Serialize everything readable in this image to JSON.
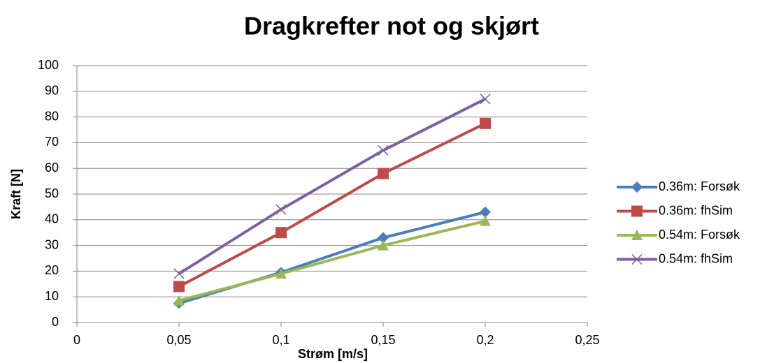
{
  "chart_data": {
    "type": "line",
    "title": "Dragkrefter not og skjørt",
    "xlabel": "Strøm [m/s]",
    "ylabel": "Kraft [N]",
    "x": [
      0.05,
      0.1,
      0.15,
      0.2
    ],
    "series": [
      {
        "name": "0.36m: Forsøk",
        "color": "#4a7ebb",
        "marker": "diamond",
        "values": [
          7.5,
          19.5,
          33,
          43
        ]
      },
      {
        "name": "0.36m: fhSim",
        "color": "#be4b48",
        "marker": "square",
        "values": [
          14,
          35,
          58,
          77.5
        ]
      },
      {
        "name": "0.54m: Forsøk",
        "color": "#98b954",
        "marker": "triangle",
        "values": [
          8.5,
          19,
          30,
          39.5
        ]
      },
      {
        "name": "0.54m: fhSim",
        "color": "#7d60a0",
        "marker": "x",
        "values": [
          19,
          44,
          67,
          87
        ]
      }
    ],
    "xlim": [
      0,
      0.25
    ],
    "xticks": [
      0,
      {
        "value": 0.05,
        "label": "0,05"
      },
      {
        "value": 0.1,
        "label": "0,1"
      },
      {
        "value": 0.15,
        "label": "0,15"
      },
      {
        "value": 0.2,
        "label": "0,2"
      },
      {
        "value": 0.25,
        "label": "0,25"
      }
    ],
    "ylim": [
      0,
      100
    ],
    "yticks": [
      0,
      10,
      20,
      30,
      40,
      50,
      60,
      70,
      80,
      90,
      100
    ],
    "grid": true,
    "legend": "right"
  }
}
